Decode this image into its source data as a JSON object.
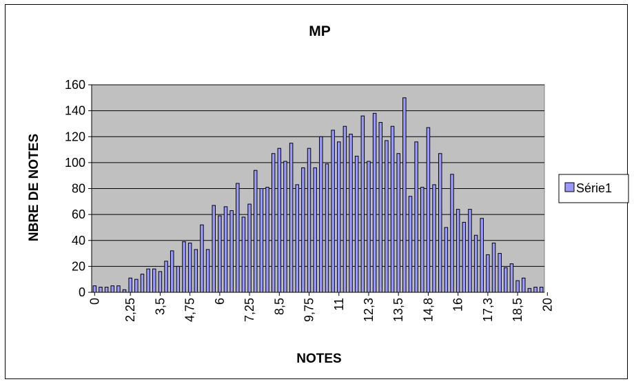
{
  "chart_data": {
    "type": "bar",
    "title": "MP",
    "xlabel": "NOTES",
    "ylabel": "NBRE DE NOTES",
    "ylim": [
      0,
      160
    ],
    "yticks": [
      0,
      20,
      40,
      60,
      80,
      100,
      120,
      140,
      160
    ],
    "grid": true,
    "legend_position": "right",
    "colors": {
      "plot_bg": "#c0c0c0",
      "bar_fill": "#9999ff",
      "bar_stroke": "#000000"
    },
    "x_tick_labels": [
      "0",
      "2,25",
      "3,5",
      "4,75",
      "6",
      "7,25",
      "8,5",
      "9,75",
      "11",
      "12,3",
      "13,5",
      "14,8",
      "16",
      "17,3",
      "18,5",
      "20"
    ],
    "x_tick_label_bar_index": [
      0,
      6,
      11,
      16,
      21,
      26,
      31,
      36,
      41,
      46,
      51,
      56,
      61,
      66,
      71,
      76
    ],
    "series": [
      {
        "name": "Série1",
        "values": [
          5,
          4,
          4,
          5,
          5,
          2,
          11,
          10,
          14,
          18,
          18,
          16,
          24,
          32,
          20,
          39,
          38,
          33,
          52,
          33,
          67,
          59,
          66,
          63,
          84,
          58,
          68,
          94,
          80,
          81,
          107,
          111,
          101,
          115,
          83,
          96,
          111,
          96,
          120,
          99,
          125,
          116,
          128,
          122,
          105,
          136,
          101,
          138,
          131,
          117,
          128,
          107,
          150,
          74,
          116,
          81,
          127,
          83,
          107,
          50,
          91,
          64,
          54,
          64,
          44,
          57,
          29,
          38,
          30,
          19,
          22,
          9,
          11,
          3,
          4,
          4
        ]
      }
    ]
  }
}
